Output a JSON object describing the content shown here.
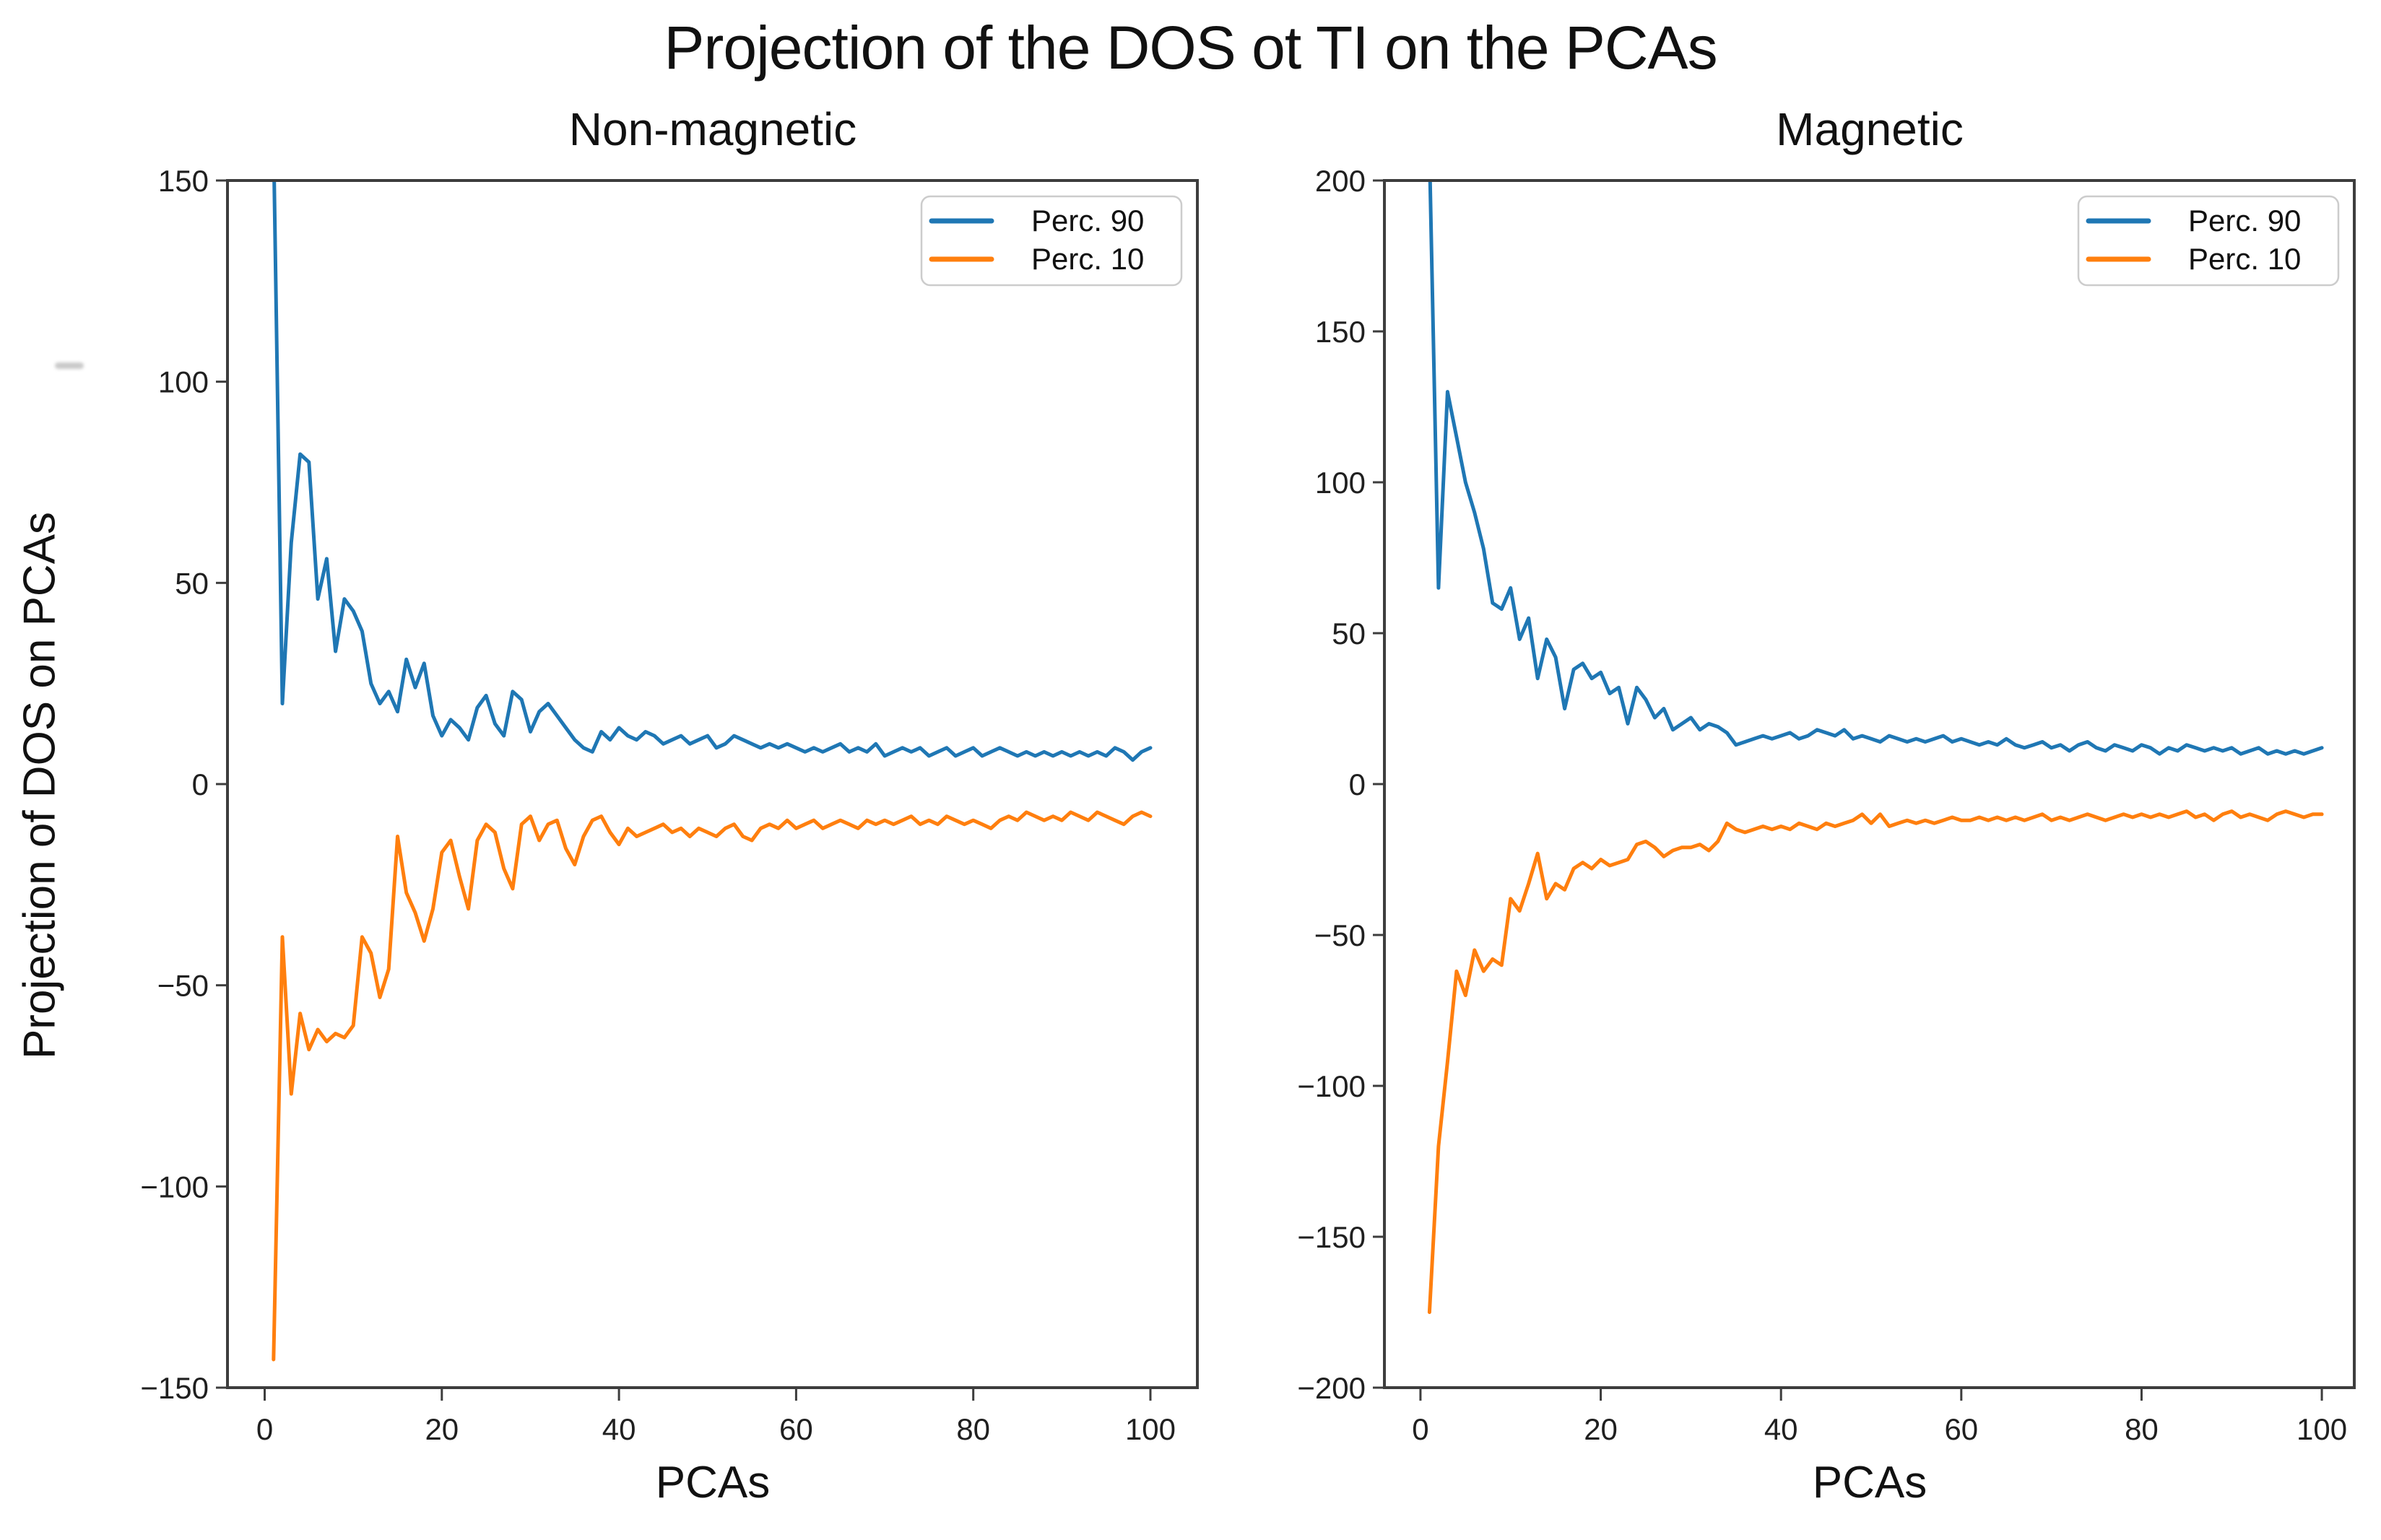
{
  "title": "Projection of the DOS ot TI on the PCAs",
  "colors": {
    "perc90_blue": "#1f77b4",
    "perc10_orange": "#ff7f0e",
    "spine": "#3d3d3d",
    "tick": "#3d3d3d",
    "text": "#111111",
    "legend_border": "#cccccc",
    "background": "#ffffff"
  },
  "chart_data": [
    {
      "type": "line",
      "title": "Non-magnetic",
      "xlabel": "PCAs",
      "ylabel": "Projection of DOS on PCAs",
      "xlim": [
        -4.2,
        105.3
      ],
      "ylim": [
        -150,
        150
      ],
      "xticks": [
        0,
        20,
        40,
        60,
        80,
        100
      ],
      "yticks": [
        150,
        100,
        50,
        0,
        -50,
        -100,
        -150
      ],
      "grid": false,
      "legend_position": "upper right",
      "x_start": 1,
      "series": [
        {
          "name": "Perc. 90",
          "color": "#1f77b4",
          "values": [
            160,
            20,
            60,
            82,
            80,
            46,
            56,
            33,
            46,
            43,
            38,
            25,
            20,
            23,
            18,
            31,
            24,
            30,
            17,
            12,
            16,
            14,
            11,
            19,
            22,
            15,
            12,
            23,
            21,
            13,
            18,
            20,
            17,
            14,
            11,
            9,
            8,
            13,
            11,
            14,
            12,
            11,
            13,
            12,
            10,
            11,
            12,
            10,
            11,
            12,
            9,
            10,
            12,
            11,
            10,
            9,
            10,
            9,
            10,
            9,
            8,
            9,
            8,
            9,
            10,
            8,
            9,
            8,
            10,
            7,
            8,
            9,
            8,
            9,
            7,
            8,
            9,
            7,
            8,
            9,
            7,
            8,
            9,
            8,
            7,
            8,
            7,
            8,
            7,
            8,
            7,
            8,
            7,
            8,
            7,
            9,
            8,
            6,
            8,
            9
          ]
        },
        {
          "name": "Perc. 10",
          "color": "#ff7f0e",
          "values": [
            -143,
            -38,
            -77,
            -57,
            -66,
            -61,
            -64,
            -62,
            -63,
            -60,
            -38,
            -42,
            -53,
            -46,
            -13,
            -27,
            -32,
            -39,
            -31,
            -17,
            -14,
            -23,
            -31,
            -14,
            -10,
            -12,
            -21,
            -26,
            -10,
            -8,
            -14,
            -10,
            -9,
            -16,
            -20,
            -13,
            -9,
            -8,
            -12,
            -15,
            -11,
            -13,
            -12,
            -11,
            -10,
            -12,
            -11,
            -13,
            -11,
            -12,
            -13,
            -11,
            -10,
            -13,
            -14,
            -11,
            -10,
            -11,
            -9,
            -11,
            -10,
            -9,
            -11,
            -10,
            -9,
            -10,
            -11,
            -9,
            -10,
            -9,
            -10,
            -9,
            -8,
            -10,
            -9,
            -10,
            -8,
            -9,
            -10,
            -9,
            -10,
            -11,
            -9,
            -8,
            -9,
            -7,
            -8,
            -9,
            -8,
            -9,
            -7,
            -8,
            -9,
            -7,
            -8,
            -9,
            -10,
            -8,
            -7,
            -8
          ]
        }
      ]
    },
    {
      "type": "line",
      "title": "Magnetic",
      "xlabel": "PCAs",
      "ylabel": "",
      "xlim": [
        -4.0,
        103.6
      ],
      "ylim": [
        -200,
        200
      ],
      "xticks": [
        0,
        20,
        40,
        60,
        80,
        100
      ],
      "yticks": [
        200,
        150,
        100,
        50,
        0,
        -50,
        -100,
        -150,
        -200
      ],
      "grid": false,
      "legend_position": "upper right",
      "x_start": 1,
      "series": [
        {
          "name": "Perc. 90",
          "color": "#1f77b4",
          "values": [
            210,
            65,
            130,
            115,
            100,
            90,
            78,
            60,
            58,
            65,
            48,
            55,
            35,
            48,
            42,
            25,
            38,
            40,
            35,
            37,
            30,
            32,
            20,
            32,
            28,
            22,
            25,
            18,
            20,
            22,
            18,
            20,
            19,
            17,
            13,
            14,
            15,
            16,
            15,
            16,
            17,
            15,
            16,
            18,
            17,
            16,
            18,
            15,
            16,
            15,
            14,
            16,
            15,
            14,
            15,
            14,
            15,
            16,
            14,
            15,
            14,
            13,
            14,
            13,
            15,
            13,
            12,
            13,
            14,
            12,
            13,
            11,
            13,
            14,
            12,
            11,
            13,
            12,
            11,
            13,
            12,
            10,
            12,
            11,
            13,
            12,
            11,
            12,
            11,
            12,
            10,
            11,
            12,
            10,
            11,
            10,
            11,
            10,
            11,
            12
          ]
        },
        {
          "name": "Perc. 10",
          "color": "#ff7f0e",
          "values": [
            -175,
            -120,
            -92,
            -62,
            -70,
            -55,
            -62,
            -58,
            -60,
            -38,
            -42,
            -33,
            -23,
            -38,
            -33,
            -35,
            -28,
            -26,
            -28,
            -25,
            -27,
            -26,
            -25,
            -20,
            -19,
            -21,
            -24,
            -22,
            -21,
            -21,
            -20,
            -22,
            -19,
            -13,
            -15,
            -16,
            -15,
            -14,
            -15,
            -14,
            -15,
            -13,
            -14,
            -15,
            -13,
            -14,
            -13,
            -12,
            -10,
            -13,
            -10,
            -14,
            -13,
            -12,
            -13,
            -12,
            -13,
            -12,
            -11,
            -12,
            -12,
            -11,
            -12,
            -11,
            -12,
            -11,
            -12,
            -11,
            -10,
            -12,
            -11,
            -12,
            -11,
            -10,
            -11,
            -12,
            -11,
            -10,
            -11,
            -10,
            -11,
            -10,
            -11,
            -10,
            -9,
            -11,
            -10,
            -12,
            -10,
            -9,
            -11,
            -10,
            -11,
            -12,
            -10,
            -9,
            -10,
            -11,
            -10,
            -10
          ]
        }
      ]
    }
  ]
}
